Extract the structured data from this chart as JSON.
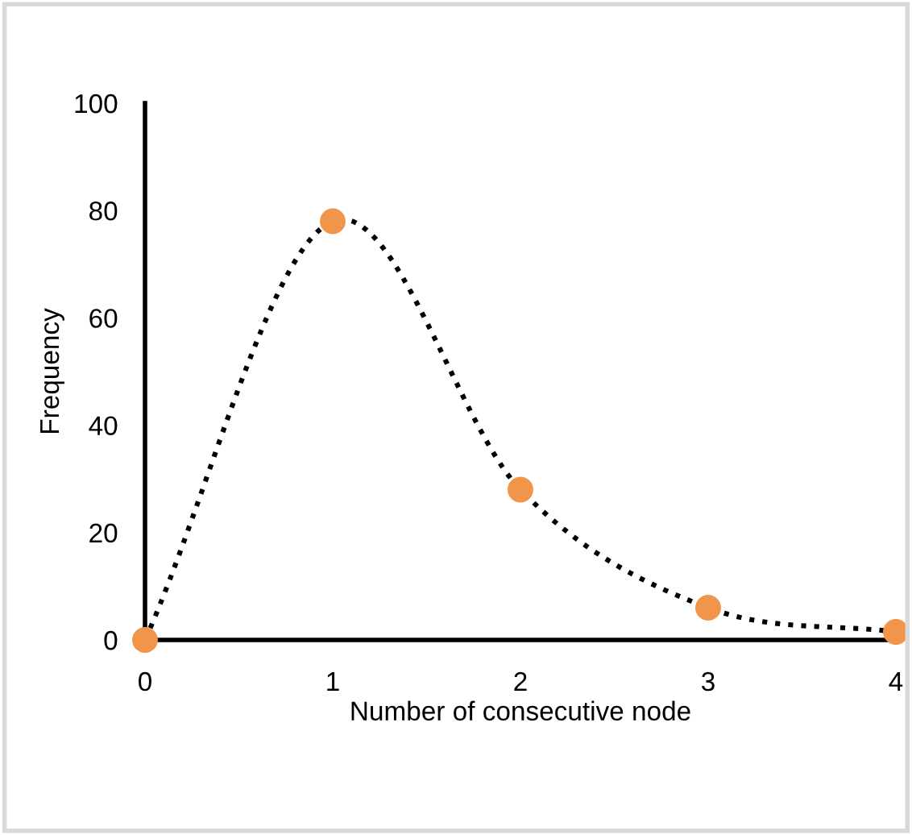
{
  "chart_data": {
    "type": "line",
    "xlabel": "Number of consecutive node",
    "ylabel": "Frequency",
    "x": [
      0,
      1,
      2,
      3,
      4
    ],
    "series": [
      {
        "color": "#000000",
        "line_style": "dotted",
        "marker": "none",
        "values": [
          0,
          78,
          28,
          6,
          1.5
        ]
      },
      {
        "type": "scatter",
        "color": "#f0954a",
        "marker": "circle",
        "values": [
          0,
          78,
          28,
          6,
          1.5
        ]
      }
    ],
    "xlim": [
      0,
      4
    ],
    "xticks": [
      0,
      1,
      2,
      3,
      4
    ],
    "ylim": [
      0,
      100
    ],
    "yticks": [
      0,
      20,
      40,
      60,
      80,
      100
    ],
    "grid": false,
    "legend": false
  }
}
